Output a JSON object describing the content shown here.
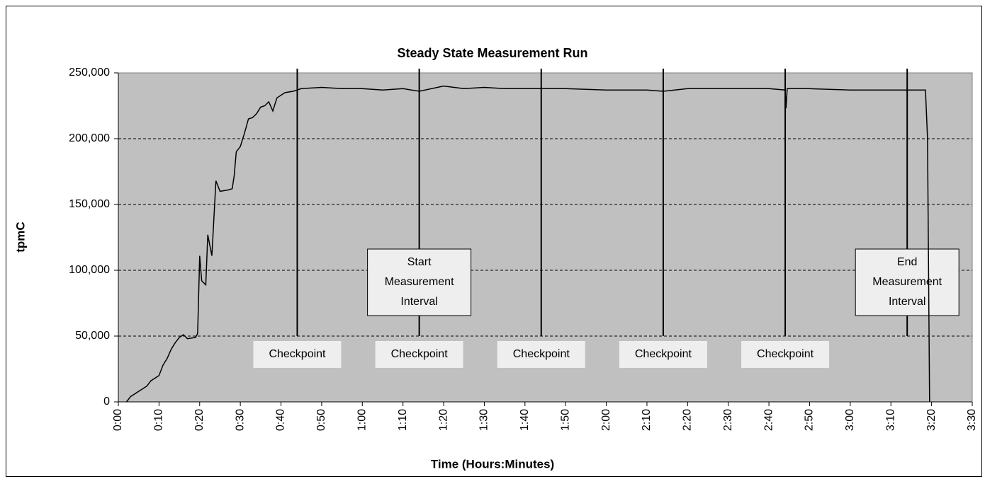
{
  "chart_data": {
    "type": "line",
    "title": "Steady State Measurement Run",
    "x_label": "Time (Hours:Minutes)",
    "y_label": "tpmC",
    "xlim": [
      0,
      210
    ],
    "ylim": [
      0,
      250000
    ],
    "xticks": [
      {
        "value": 0,
        "label": "0:00"
      },
      {
        "value": 10,
        "label": "0:10"
      },
      {
        "value": 20,
        "label": "0:20"
      },
      {
        "value": 30,
        "label": "0:30"
      },
      {
        "value": 40,
        "label": "0:40"
      },
      {
        "value": 50,
        "label": "0:50"
      },
      {
        "value": 60,
        "label": "1:00"
      },
      {
        "value": 70,
        "label": "1:10"
      },
      {
        "value": 80,
        "label": "1:20"
      },
      {
        "value": 90,
        "label": "1:30"
      },
      {
        "value": 100,
        "label": "1:40"
      },
      {
        "value": 110,
        "label": "1:50"
      },
      {
        "value": 120,
        "label": "2:00"
      },
      {
        "value": 130,
        "label": "2:10"
      },
      {
        "value": 140,
        "label": "2:20"
      },
      {
        "value": 150,
        "label": "2:30"
      },
      {
        "value": 160,
        "label": "2:40"
      },
      {
        "value": 170,
        "label": "2:50"
      },
      {
        "value": 180,
        "label": "3:00"
      },
      {
        "value": 190,
        "label": "3:10"
      },
      {
        "value": 200,
        "label": "3:20"
      },
      {
        "value": 210,
        "label": "3:30"
      }
    ],
    "yticks": [
      0,
      {
        "value": 50000,
        "label": "50,000"
      },
      {
        "value": 100000,
        "label": "100,000"
      },
      {
        "value": 150000,
        "label": "150,000"
      },
      {
        "value": 200000,
        "label": "200,000"
      },
      {
        "value": 250000,
        "label": "250,000"
      }
    ],
    "grid": true,
    "plot_background": "#c0c0c0",
    "series": [
      {
        "color": "#000000",
        "x": [
          2,
          3,
          5,
          7,
          8,
          10,
          11,
          12,
          13,
          14,
          15,
          16,
          17,
          19,
          19.5,
          20,
          20.5,
          21.5,
          22,
          23,
          24,
          25,
          27,
          28,
          28.5,
          29,
          30,
          31,
          32,
          33,
          34,
          35,
          36,
          37,
          38,
          39,
          41,
          43,
          45,
          50,
          55,
          60,
          65,
          70,
          74,
          80,
          85,
          90,
          95,
          100,
          110,
          120,
          130,
          134,
          140,
          150,
          160,
          164,
          164.2,
          164.5,
          170,
          180,
          190,
          197,
          198.5,
          199,
          199.5
        ],
        "values": [
          0,
          4000,
          8000,
          12000,
          16000,
          20000,
          28000,
          33000,
          40000,
          45000,
          49000,
          51000,
          48000,
          49000,
          52000,
          111000,
          92000,
          89000,
          127000,
          111000,
          168000,
          160000,
          161000,
          162000,
          172000,
          190000,
          194000,
          204000,
          215000,
          216000,
          219000,
          224000,
          225000,
          228000,
          221000,
          231000,
          235000,
          236000,
          238000,
          239000,
          238000,
          238000,
          237000,
          238000,
          236000,
          240000,
          238000,
          239000,
          238000,
          238000,
          238000,
          237000,
          237000,
          236000,
          238000,
          238000,
          238000,
          237000,
          223000,
          238000,
          238000,
          237000,
          237000,
          237000,
          237000,
          200000,
          0
        ]
      }
    ],
    "checkpoints": [
      {
        "x": 44,
        "label": "Checkpoint"
      },
      {
        "x": 74,
        "label": "Checkpoint"
      },
      {
        "x": 104,
        "label": "Checkpoint"
      },
      {
        "x": 134,
        "label": "Checkpoint"
      },
      {
        "x": 164,
        "label": "Checkpoint"
      }
    ],
    "intervals": [
      {
        "x": 74,
        "label": [
          "Start",
          "Measurement",
          "Interval"
        ]
      },
      {
        "x": 194,
        "label": [
          "End",
          "Measurement",
          "Interval"
        ]
      }
    ]
  }
}
